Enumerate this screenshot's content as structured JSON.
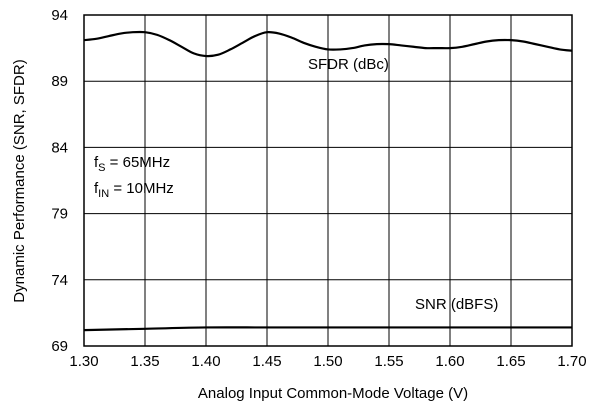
{
  "chart_data": {
    "type": "line",
    "xlabel": "Analog Input Common-Mode Voltage (V)",
    "ylabel": "Dynamic Performance (SNR, SFDR)",
    "xlim": [
      1.3,
      1.7
    ],
    "ylim": [
      69,
      94
    ],
    "xticks": [
      "1.30",
      "1.35",
      "1.40",
      "1.45",
      "1.50",
      "1.55",
      "1.60",
      "1.65",
      "1.70"
    ],
    "yticks": [
      "94",
      "89",
      "84",
      "79",
      "74",
      "69"
    ],
    "grid": true,
    "series": [
      {
        "name": "SFDR (dBc)",
        "x": [
          1.3,
          1.31,
          1.32,
          1.33,
          1.34,
          1.35,
          1.36,
          1.37,
          1.38,
          1.39,
          1.4,
          1.41,
          1.42,
          1.43,
          1.44,
          1.45,
          1.46,
          1.47,
          1.48,
          1.49,
          1.5,
          1.51,
          1.52,
          1.53,
          1.54,
          1.55,
          1.56,
          1.57,
          1.58,
          1.59,
          1.6,
          1.61,
          1.62,
          1.63,
          1.64,
          1.65,
          1.66,
          1.67,
          1.68,
          1.69,
          1.7
        ],
        "values": [
          92.1,
          92.2,
          92.4,
          92.6,
          92.7,
          92.7,
          92.5,
          92.1,
          91.6,
          91.1,
          90.9,
          91.0,
          91.4,
          91.9,
          92.4,
          92.7,
          92.6,
          92.3,
          91.9,
          91.6,
          91.4,
          91.4,
          91.5,
          91.7,
          91.8,
          91.8,
          91.7,
          91.6,
          91.5,
          91.5,
          91.5,
          91.6,
          91.8,
          92.0,
          92.1,
          92.1,
          92.0,
          91.8,
          91.6,
          91.4,
          91.3
        ]
      },
      {
        "name": "SNR (dBFS)",
        "x": [
          1.3,
          1.35,
          1.4,
          1.45,
          1.5,
          1.55,
          1.6,
          1.65,
          1.7
        ],
        "values": [
          70.2,
          70.3,
          70.4,
          70.4,
          70.4,
          70.4,
          70.4,
          70.4,
          70.4
        ]
      }
    ],
    "annotations": {
      "line1_main": "f",
      "line1_sub": "S",
      "line1_rest": " = 65MHz",
      "line2_main": "f",
      "line2_sub": "IN",
      "line2_rest": " = 10MHz"
    }
  }
}
